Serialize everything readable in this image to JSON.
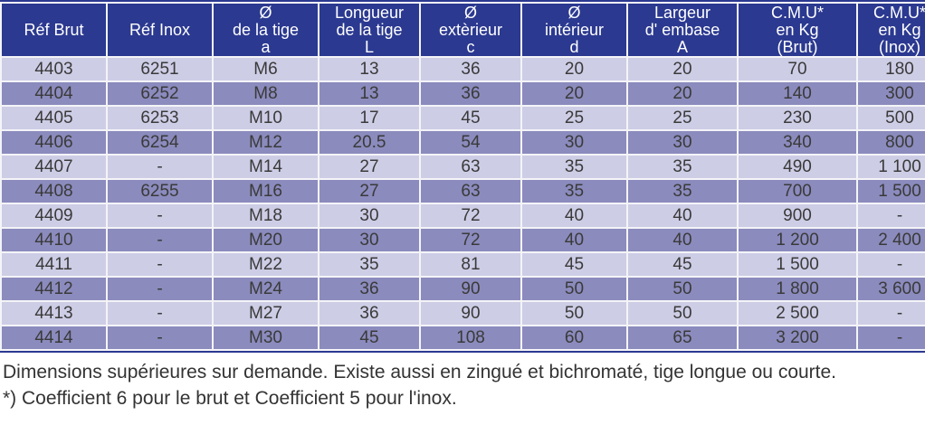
{
  "table": {
    "columns": [
      "Réf Brut",
      "Réf Inox",
      "Ø\nde la tige\na",
      "Longueur\nde la tige\nL",
      "Ø\nextèrieur\nc",
      "Ø\nintérieur\nd",
      "Largeur\nd' embase\nA",
      "C.M.U*\nen Kg\n(Brut)",
      "C.M.U*\nen Kg\n(Inox)"
    ],
    "rows": [
      [
        "4403",
        "6251",
        "M6",
        "13",
        "36",
        "20",
        "20",
        "70",
        "180"
      ],
      [
        "4404",
        "6252",
        "M8",
        "13",
        "36",
        "20",
        "20",
        "140",
        "300"
      ],
      [
        "4405",
        "6253",
        "M10",
        "17",
        "45",
        "25",
        "25",
        "230",
        "500"
      ],
      [
        "4406",
        "6254",
        "M12",
        "20.5",
        "54",
        "30",
        "30",
        "340",
        "800"
      ],
      [
        "4407",
        "-",
        "M14",
        "27",
        "63",
        "35",
        "35",
        "490",
        "1 100"
      ],
      [
        "4408",
        "6255",
        "M16",
        "27",
        "63",
        "35",
        "35",
        "700",
        "1 500"
      ],
      [
        "4409",
        "-",
        "M18",
        "30",
        "72",
        "40",
        "40",
        "900",
        "-"
      ],
      [
        "4410",
        "-",
        "M20",
        "30",
        "72",
        "40",
        "40",
        "1 200",
        "2 400"
      ],
      [
        "4411",
        "-",
        "M22",
        "35",
        "81",
        "45",
        "45",
        "1 500",
        "-"
      ],
      [
        "4412",
        "-",
        "M24",
        "36",
        "90",
        "50",
        "50",
        "1 800",
        "3 600"
      ],
      [
        "4413",
        "-",
        "M27",
        "36",
        "90",
        "50",
        "50",
        "2 500",
        "-"
      ],
      [
        "4414",
        "-",
        "M30",
        "45",
        "108",
        "60",
        "65",
        "3 200",
        "-"
      ]
    ]
  },
  "footer": {
    "line1": "Dimensions supérieures sur demande. Existe aussi en zingué et bichromaté, tige longue ou courte.",
    "line2": "*) Coefficient 6 pour le brut et Coefficient 5 pour l'inox."
  },
  "colors": {
    "header_bg": "#2B3990",
    "header_text": "#FFFFFF",
    "row_light": "#CDCDE6",
    "row_dark": "#8B8BBE",
    "cell_text": "#3A3A3A"
  }
}
